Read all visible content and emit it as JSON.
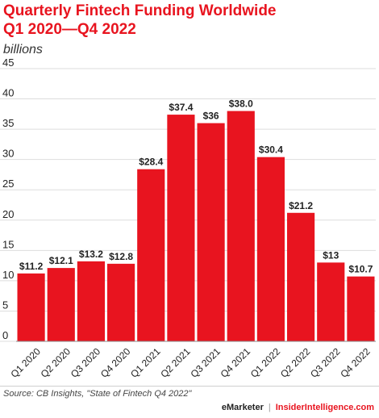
{
  "title_line1": "Quarterly Fintech Funding Worldwide",
  "title_line2": "Q1 2020—Q4 2022",
  "subtitle": "billions",
  "source": "Source: CB Insights, \"State of Fintech Q4 2022\"",
  "brand": {
    "emarketer": "eMarketer",
    "insider": "InsiderIntelligence.com"
  },
  "colors": {
    "bar": "#e8141f",
    "accent": "#e8141f",
    "grid": "#dddddd",
    "text": "#222222"
  },
  "chart_data": {
    "type": "bar",
    "title": "Quarterly Fintech Funding Worldwide Q1 2020—Q4 2022",
    "subtitle": "billions",
    "xlabel": "",
    "ylabel": "",
    "ylim": [
      0,
      45
    ],
    "yticks": [
      0,
      5,
      10,
      15,
      20,
      25,
      30,
      35,
      40,
      45
    ],
    "grid": true,
    "categories": [
      "Q1 2020",
      "Q2 2020",
      "Q3 2020",
      "Q4 2020",
      "Q1 2021",
      "Q2 2021",
      "Q3 2021",
      "Q4 2021",
      "Q1 2022",
      "Q2 2022",
      "Q3 2022",
      "Q4 2022"
    ],
    "values": [
      11.2,
      12.1,
      13.2,
      12.8,
      28.4,
      37.4,
      36,
      38.0,
      30.4,
      21.2,
      13,
      10.7
    ],
    "value_labels": [
      "$11.2",
      "$12.1",
      "$13.2",
      "$12.8",
      "$28.4",
      "$37.4",
      "$36",
      "$38.0",
      "$30.4",
      "$21.2",
      "$13",
      "$10.7"
    ]
  }
}
